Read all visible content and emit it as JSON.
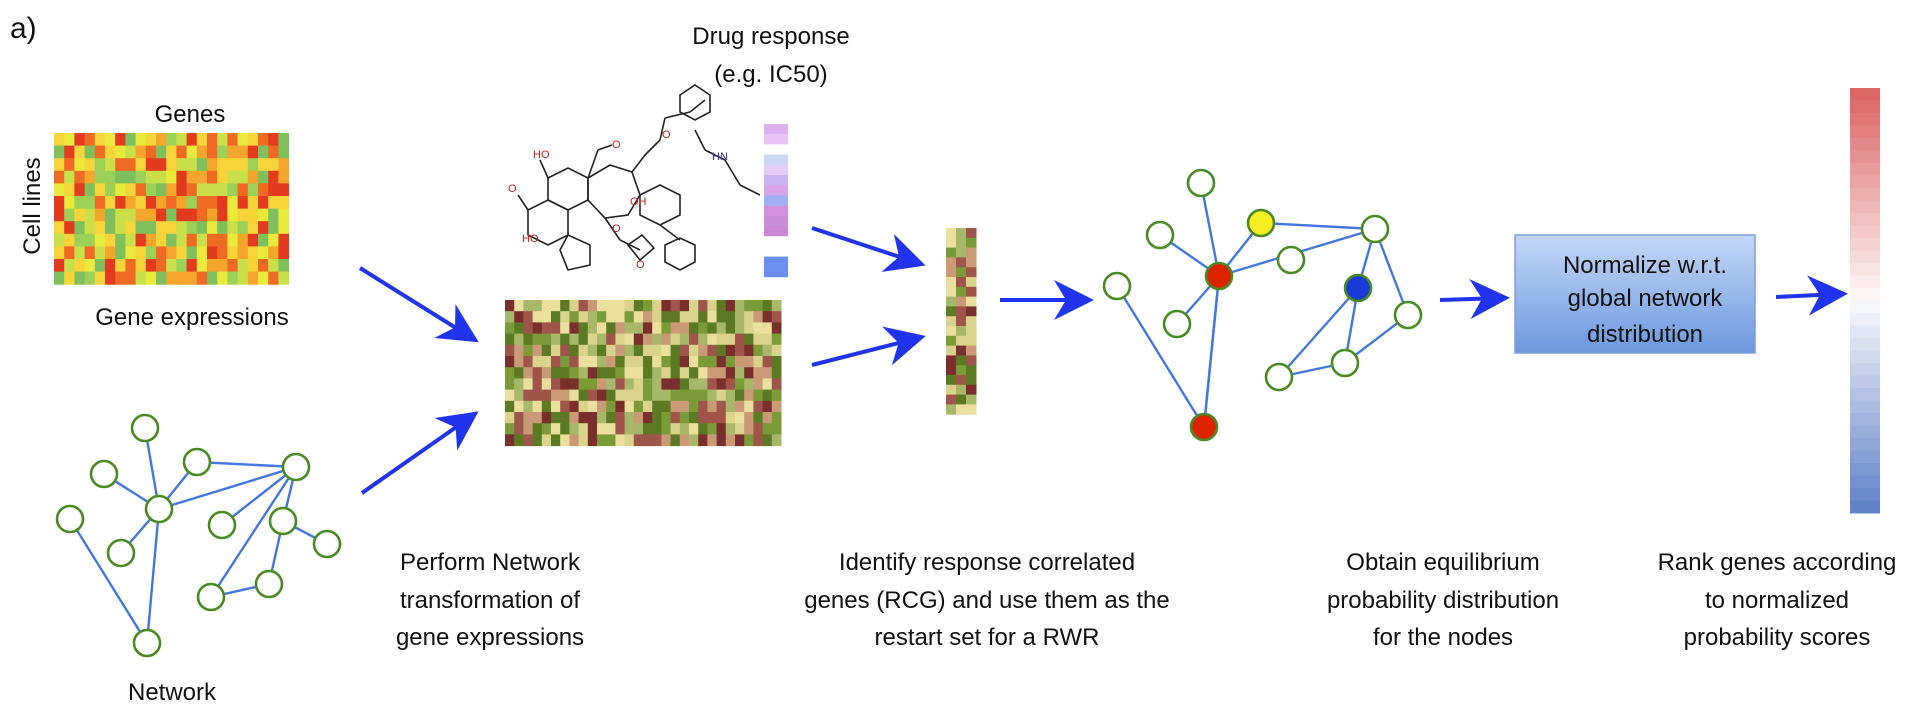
{
  "panel_label": "a)",
  "heatmap_labels": {
    "genes": "Genes",
    "cell_lines": "Cell lines",
    "gene_expressions": "Gene expressions"
  },
  "drug_response": {
    "line1": "Drug response",
    "line2": "(e.g. IC50)"
  },
  "network_label": "Network",
  "normalize_box": {
    "line1": "Normalize w.r.t.",
    "line2": "global network",
    "line3": "distribution"
  },
  "steps": {
    "transform": [
      "Perform Network",
      "transformation of",
      "gene expressions"
    ],
    "rcg": [
      "Identify response correlated",
      "genes (RCG) and use them as the",
      "restart set for a RWR"
    ],
    "equilibrium": [
      "Obtain equilibrium",
      "probability distribution",
      "for the nodes"
    ],
    "rank": [
      "Rank genes according",
      "to normalized",
      "probability scores"
    ]
  },
  "colors": {
    "arrow": "#2233ee",
    "edge": "#4477dd",
    "node_stroke": "#4a8a22",
    "node_red": "#dd2200",
    "node_yellow": "#f5ee22",
    "node_blue": "#1a3bd8",
    "box_fill_top": "#b9d0f3",
    "box_fill_bottom": "#6e9ae0"
  }
}
